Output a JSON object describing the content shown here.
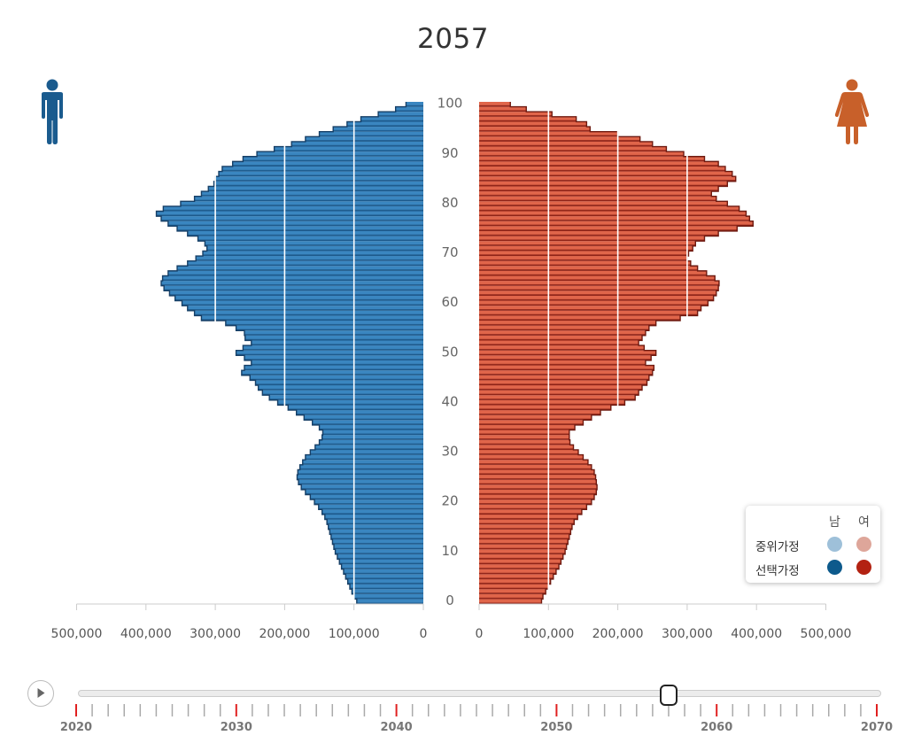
{
  "header": {
    "year": "2057"
  },
  "icons": {
    "male": "male-person-icon",
    "female": "female-person-icon",
    "play": "play-icon"
  },
  "colors": {
    "male_fill": "#3a86c0",
    "male_stripe": "#1e5a8c",
    "male_outline": "#163f66",
    "female_fill": "#e0654a",
    "female_stripe": "#8f2418",
    "female_outline": "#6e1a10",
    "male_icon": "#1a5b8e",
    "female_icon": "#c8602a",
    "legend_mid_male": "#9ec0d9",
    "legend_mid_female": "#dea69a",
    "legend_sel_male": "#0d5a8c",
    "legend_sel_female": "#b32212",
    "tick_major": "#e02020",
    "tick_minor": "#aaaaaa"
  },
  "legend": {
    "col_male": "남",
    "col_female": "여",
    "rows": [
      {
        "label": "중위가정"
      },
      {
        "label": "선택가정"
      }
    ]
  },
  "timeline": {
    "start": 2020,
    "end": 2070,
    "current": 2057,
    "labels": [
      "2020",
      "2030",
      "2040",
      "2050",
      "2060",
      "2070"
    ]
  },
  "chart_data": {
    "type": "bar",
    "subtype": "population-pyramid",
    "ages": [
      0,
      1,
      2,
      3,
      4,
      5,
      6,
      7,
      8,
      9,
      10,
      11,
      12,
      13,
      14,
      15,
      16,
      17,
      18,
      19,
      20,
      21,
      22,
      23,
      24,
      25,
      26,
      27,
      28,
      29,
      30,
      31,
      32,
      33,
      34,
      35,
      36,
      37,
      38,
      39,
      40,
      41,
      42,
      43,
      44,
      45,
      46,
      47,
      48,
      49,
      50,
      51,
      52,
      53,
      54,
      55,
      56,
      57,
      58,
      59,
      60,
      61,
      62,
      63,
      64,
      65,
      66,
      67,
      68,
      69,
      70,
      71,
      72,
      73,
      74,
      75,
      76,
      77,
      78,
      79,
      80,
      81,
      82,
      83,
      84,
      85,
      86,
      87,
      88,
      89,
      90,
      91,
      92,
      93,
      94,
      95,
      96,
      97,
      98,
      99,
      100
    ],
    "y_ticks": [
      "0",
      "10",
      "20",
      "30",
      "40",
      "50",
      "60",
      "70",
      "80",
      "90",
      "100"
    ],
    "x_ticks": [
      "500,000",
      "400,000",
      "300,000",
      "200,000",
      "100,000",
      "0"
    ],
    "x_ticks_right": [
      "0",
      "100,000",
      "200,000",
      "300,000",
      "400,000",
      "500,000"
    ],
    "xlim": [
      0,
      500000
    ],
    "series": [
      {
        "name": "남",
        "side": "left",
        "values": [
          96000,
          100000,
          103000,
          106000,
          109000,
          112000,
          115000,
          118000,
          121000,
          124000,
          127000,
          129000,
          131000,
          133000,
          135000,
          137000,
          139000,
          142000,
          146000,
          151000,
          157000,
          163000,
          170000,
          176000,
          180000,
          182000,
          181000,
          178000,
          174000,
          170000,
          163000,
          156000,
          150000,
          146000,
          145000,
          150000,
          160000,
          172000,
          183000,
          195000,
          210000,
          222000,
          232000,
          238000,
          242000,
          250000,
          262000,
          258000,
          248000,
          258000,
          270000,
          260000,
          248000,
          257000,
          258000,
          270000,
          285000,
          320000,
          330000,
          340000,
          348000,
          358000,
          366000,
          374000,
          378000,
          376000,
          368000,
          355000,
          340000,
          328000,
          318000,
          312000,
          315000,
          325000,
          340000,
          355000,
          368000,
          378000,
          385000,
          375000,
          350000,
          330000,
          320000,
          310000,
          302000,
          300000,
          295000,
          290000,
          275000,
          260000,
          240000,
          215000,
          190000,
          170000,
          150000,
          130000,
          110000,
          90000,
          65000,
          40000,
          25000
        ]
      },
      {
        "name": "여",
        "side": "right",
        "values": [
          90000,
          92000,
          96000,
          100000,
          103000,
          107000,
          111000,
          115000,
          118000,
          121000,
          124000,
          126000,
          128000,
          130000,
          132000,
          134000,
          137000,
          142000,
          148000,
          155000,
          162000,
          166000,
          169000,
          170000,
          169000,
          168000,
          166000,
          162000,
          157000,
          150000,
          143000,
          136000,
          131000,
          130000,
          130000,
          138000,
          150000,
          162000,
          175000,
          190000,
          210000,
          225000,
          230000,
          235000,
          242000,
          245000,
          250000,
          252000,
          240000,
          248000,
          255000,
          238000,
          230000,
          235000,
          240000,
          245000,
          255000,
          290000,
          315000,
          320000,
          330000,
          338000,
          342000,
          345000,
          346000,
          340000,
          328000,
          315000,
          305000,
          300000,
          302000,
          308000,
          312000,
          325000,
          345000,
          372000,
          395000,
          390000,
          385000,
          375000,
          358000,
          342000,
          335000,
          345000,
          358000,
          370000,
          365000,
          355000,
          345000,
          325000,
          295000,
          270000,
          250000,
          232000,
          200000,
          160000,
          155000,
          140000,
          105000,
          68000,
          45000
        ]
      }
    ]
  }
}
